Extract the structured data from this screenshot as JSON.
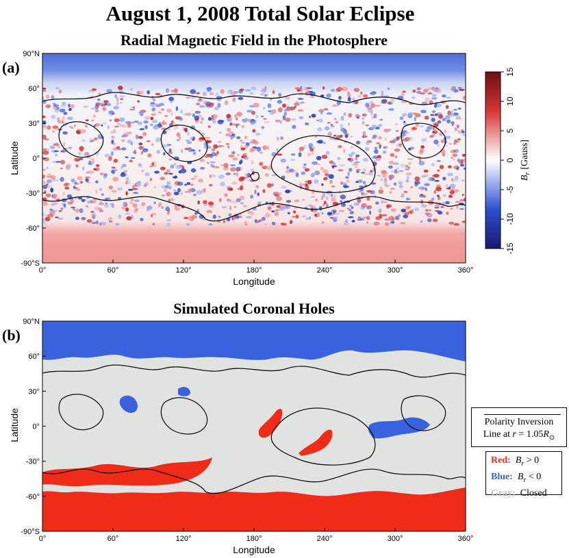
{
  "title": "August 1, 2008 Total Solar Eclipse",
  "chart_data": [
    {
      "type": "heatmap",
      "panel_label": "(a)",
      "title": "Radial Magnetic Field in the Photosphere",
      "xlabel": "Longitude",
      "ylabel": "Latitude",
      "xlim": [
        0,
        360
      ],
      "ylim": [
        -90,
        90
      ],
      "x_ticks": [
        "0°",
        "60°",
        "120°",
        "180°",
        "240°",
        "300°",
        "360°"
      ],
      "y_ticks": [
        "90°N",
        "60°",
        "30°",
        "0°",
        "-30°",
        "-60°",
        "-90°S"
      ],
      "colorbar": {
        "label_var": "B",
        "label_sub": "r",
        "label_unit": "[Gauss]",
        "range": [
          -15,
          15
        ],
        "ticks": [
          "15",
          "10",
          "5",
          "0",
          "-5",
          "-10",
          "-15"
        ],
        "colormap": [
          "#1a1a6e",
          "#2c4fd1",
          "#ffffff",
          "#d83434",
          "#6e0f12"
        ]
      },
      "description_values": {
        "north_polar_cap_Br": -6,
        "south_polar_cap_Br": 5,
        "polar_boundary_north_lat": 55,
        "polar_boundary_south_lat": -55
      }
    },
    {
      "type": "heatmap",
      "panel_label": "(b)",
      "title": "Simulated Coronal Holes",
      "xlabel": "Longitude",
      "ylabel": "Latitude",
      "xlim": [
        0,
        360
      ],
      "ylim": [
        -90,
        90
      ],
      "x_ticks": [
        "0°",
        "60°",
        "120°",
        "180°",
        "240°",
        "300°",
        "360°"
      ],
      "y_ticks": [
        "90°N",
        "60°",
        "30°",
        "0°",
        "-30°",
        "-60°",
        "-90°S"
      ],
      "legend": {
        "line_label_1": "Polarity Inversion",
        "line_label_2_prefix": "Line at ",
        "line_label_2_var": "r",
        "line_label_2_mid": " = 1.05",
        "line_label_2_R": "R",
        "line_label_2_sun": "⊙",
        "red_label": "Red:",
        "red_desc": " > 0",
        "blue_label": "Blue:",
        "blue_desc": " < 0",
        "gray_label": "Gray:",
        "gray_desc": "Closed",
        "br_var": "B",
        "br_sub": "r"
      },
      "colors": {
        "open_positive": "#f02b17",
        "open_negative": "#3b62de",
        "closed": "#e1e3e1"
      }
    }
  ]
}
